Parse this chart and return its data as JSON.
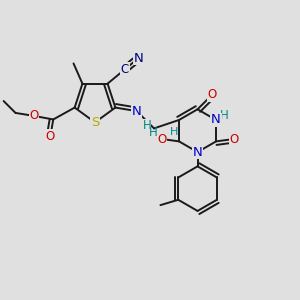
{
  "background_color": "#e0e0e0",
  "bond_color": "#1a1a1a",
  "bond_width": 1.4,
  "dbo": 0.012,
  "colors": {
    "N": "#0000cc",
    "O": "#cc0000",
    "S": "#bbaa00",
    "H": "#008888",
    "bg": "#e0e0e0"
  },
  "fs": 8.5
}
